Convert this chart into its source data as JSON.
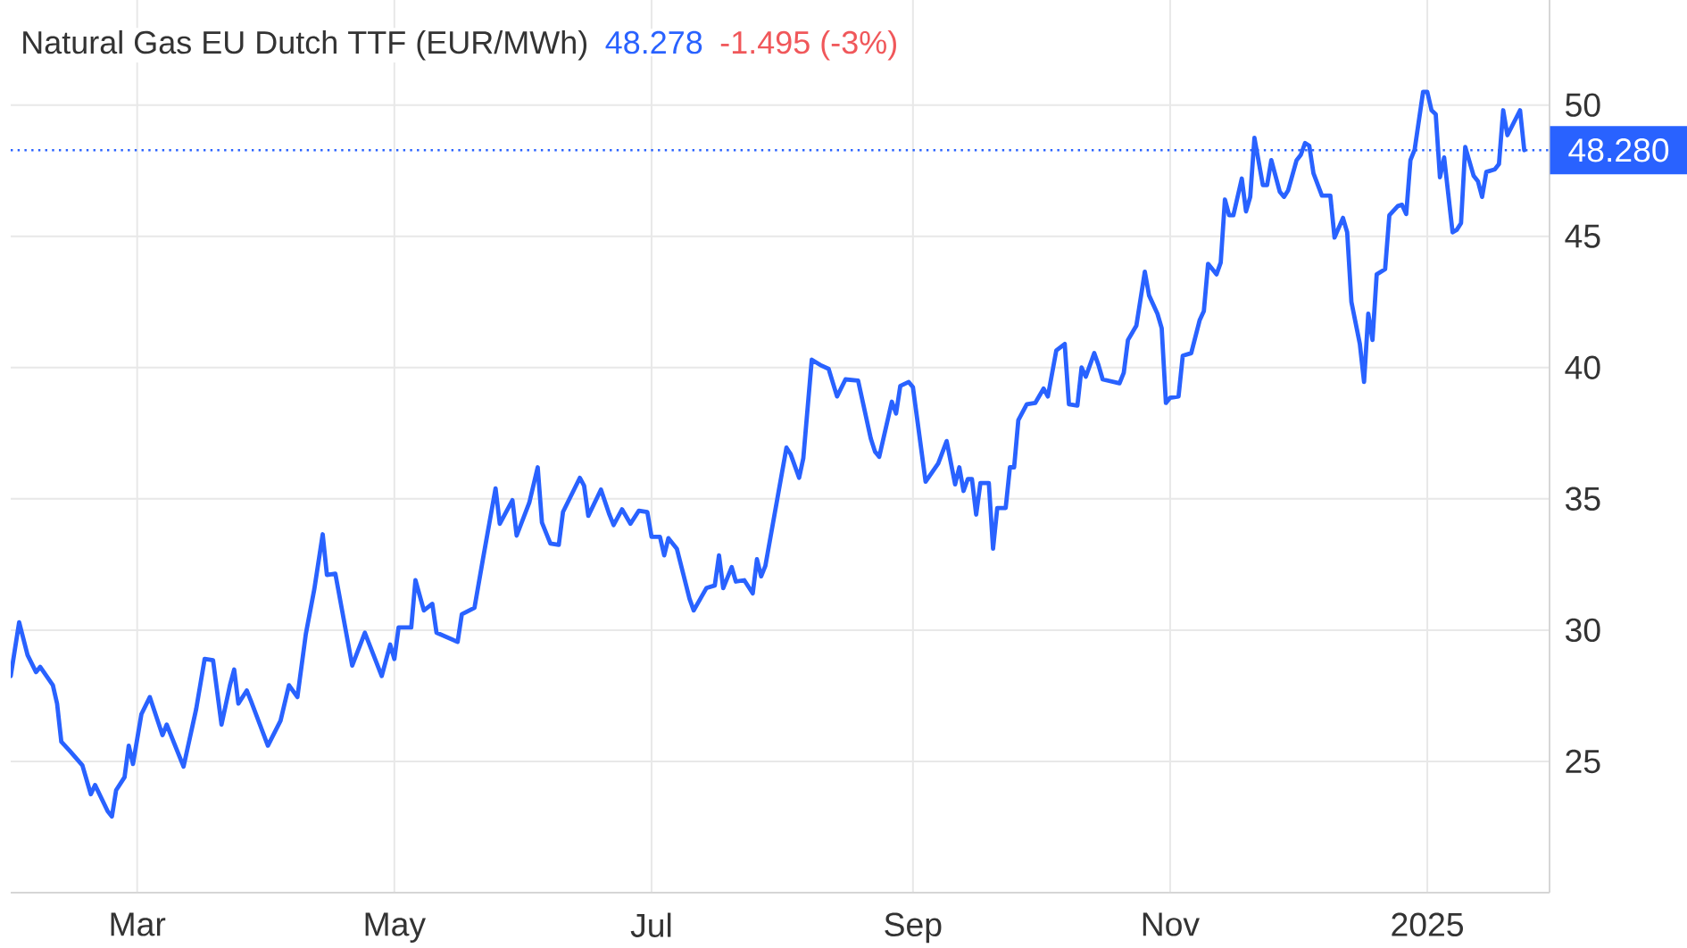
{
  "chart_data": {
    "type": "line",
    "title": "Natural Gas EU Dutch TTF (EUR/MWh)",
    "annotations": [
      "48.278",
      "-1.495 (-3%)"
    ],
    "color": "#2962ff",
    "x": [
      "2024-01-31",
      "2024-02-02",
      "2024-02-04",
      "2024-02-06",
      "2024-02-07",
      "2024-02-10",
      "2024-02-11",
      "2024-02-12",
      "2024-02-14",
      "2024-02-17",
      "2024-02-19",
      "2024-02-20",
      "2024-02-23",
      "2024-02-24",
      "2024-02-25",
      "2024-02-27",
      "2024-02-28",
      "2024-02-29",
      "2024-03-02",
      "2024-03-04",
      "2024-03-07",
      "2024-03-08",
      "2024-03-12",
      "2024-03-15",
      "2024-03-17",
      "2024-03-19",
      "2024-03-21",
      "2024-03-23",
      "2024-03-24",
      "2024-03-25",
      "2024-03-27",
      "2024-03-28",
      "2024-04-01",
      "2024-04-04",
      "2024-04-06",
      "2024-04-08",
      "2024-04-10",
      "2024-04-12",
      "2024-04-14",
      "2024-04-15",
      "2024-04-17",
      "2024-04-21",
      "2024-04-24",
      "2024-04-28",
      "2024-04-30",
      "2024-05-01",
      "2024-05-02",
      "2024-05-05",
      "2024-05-06",
      "2024-05-08",
      "2024-05-10",
      "2024-05-11",
      "2024-05-16",
      "2024-05-17",
      "2024-05-20",
      "2024-05-22",
      "2024-05-25",
      "2024-05-26",
      "2024-05-29",
      "2024-05-30",
      "2024-06-02",
      "2024-06-04",
      "2024-06-05",
      "2024-06-07",
      "2024-06-09",
      "2024-06-10",
      "2024-06-14",
      "2024-06-15",
      "2024-06-16",
      "2024-06-19",
      "2024-06-21",
      "2024-06-22",
      "2024-06-24",
      "2024-06-26",
      "2024-06-28",
      "2024-06-30",
      "2024-07-01",
      "2024-07-03",
      "2024-07-04",
      "2024-07-05",
      "2024-07-07",
      "2024-07-10",
      "2024-07-11",
      "2024-07-14",
      "2024-07-16",
      "2024-07-17",
      "2024-07-18",
      "2024-07-20",
      "2024-07-21",
      "2024-07-23",
      "2024-07-25",
      "2024-07-26",
      "2024-07-27",
      "2024-07-28",
      "2024-07-31",
      "2024-08-02",
      "2024-08-03",
      "2024-08-05",
      "2024-08-06",
      "2024-08-08",
      "2024-08-10",
      "2024-08-12",
      "2024-08-14",
      "2024-08-16",
      "2024-08-19",
      "2024-08-22",
      "2024-08-23",
      "2024-08-24",
      "2024-08-27",
      "2024-08-28",
      "2024-08-29",
      "2024-08-31",
      "2024-09-01",
      "2024-09-04",
      "2024-09-07",
      "2024-09-09",
      "2024-09-11",
      "2024-09-12",
      "2024-09-13",
      "2024-09-14",
      "2024-09-15",
      "2024-09-16",
      "2024-09-17",
      "2024-09-19",
      "2024-09-20",
      "2024-09-21",
      "2024-09-23",
      "2024-09-24",
      "2024-09-25",
      "2024-09-26",
      "2024-09-28",
      "2024-09-30",
      "2024-10-02",
      "2024-10-03",
      "2024-10-05",
      "2024-10-07",
      "2024-10-08",
      "2024-10-10",
      "2024-10-11",
      "2024-10-12",
      "2024-10-14",
      "2024-10-15",
      "2024-10-16",
      "2024-10-20",
      "2024-10-21",
      "2024-10-22",
      "2024-10-24",
      "2024-10-26",
      "2024-10-27",
      "2024-10-29",
      "2024-10-30",
      "2024-10-31",
      "2024-11-01",
      "2024-11-03",
      "2024-11-04",
      "2024-11-06",
      "2024-11-08",
      "2024-11-09",
      "2024-11-10",
      "2024-11-12",
      "2024-11-13",
      "2024-11-14",
      "2024-11-15",
      "2024-11-16",
      "2024-11-18",
      "2024-11-19",
      "2024-11-20",
      "2024-11-21",
      "2024-11-23",
      "2024-11-24",
      "2024-11-25",
      "2024-11-27",
      "2024-11-28",
      "2024-11-29",
      "2024-12-01",
      "2024-12-02",
      "2024-12-03",
      "2024-12-04",
      "2024-12-05",
      "2024-12-07",
      "2024-12-09",
      "2024-12-10",
      "2024-12-12",
      "2024-12-13",
      "2024-12-14",
      "2024-12-16",
      "2024-12-17",
      "2024-12-18",
      "2024-12-19",
      "2024-12-20",
      "2024-12-22",
      "2024-12-23",
      "2024-12-25",
      "2024-12-26",
      "2024-12-27",
      "2024-12-28",
      "2024-12-29",
      "2024-12-31",
      "2025-01-01",
      "2025-01-02",
      "2025-01-03",
      "2025-01-04",
      "2025-01-05",
      "2025-01-07",
      "2025-01-08",
      "2025-01-09",
      "2025-01-10",
      "2025-01-12",
      "2025-01-13",
      "2025-01-14",
      "2025-01-15",
      "2025-01-17",
      "2025-01-18",
      "2025-01-19",
      "2025-01-20",
      "2025-01-23",
      "2025-01-24"
    ],
    "values": [
      28.25,
      30.3,
      29.05,
      28.4,
      28.6,
      27.9,
      27.2,
      25.75,
      25.4,
      24.85,
      23.75,
      24.1,
      23.1,
      22.9,
      23.9,
      24.4,
      25.6,
      24.9,
      26.8,
      27.45,
      26.0,
      26.4,
      24.8,
      27.0,
      28.9,
      28.85,
      26.4,
      27.9,
      28.5,
      27.2,
      27.7,
      27.3,
      25.6,
      26.55,
      27.9,
      27.45,
      29.85,
      31.55,
      33.65,
      32.1,
      32.15,
      28.65,
      29.9,
      28.25,
      29.45,
      28.9,
      30.1,
      30.1,
      31.9,
      30.75,
      31.0,
      29.9,
      29.55,
      30.6,
      30.85,
      32.7,
      35.4,
      34.05,
      34.95,
      33.6,
      34.85,
      36.2,
      34.1,
      33.3,
      33.25,
      34.5,
      35.8,
      35.5,
      34.35,
      35.35,
      34.4,
      34.0,
      34.6,
      34.05,
      34.55,
      34.5,
      33.55,
      33.55,
      32.85,
      33.5,
      33.1,
      31.2,
      30.75,
      31.6,
      31.7,
      32.85,
      31.6,
      32.4,
      31.85,
      31.9,
      31.4,
      32.7,
      32.05,
      32.45,
      35.15,
      36.95,
      36.7,
      35.8,
      36.55,
      40.3,
      40.1,
      39.95,
      38.9,
      39.55,
      39.5,
      37.3,
      36.8,
      36.6,
      38.7,
      38.25,
      39.3,
      39.45,
      39.25,
      35.65,
      36.35,
      37.2,
      35.55,
      36.2,
      35.3,
      35.75,
      35.75,
      34.4,
      35.6,
      35.6,
      33.1,
      34.65,
      34.65,
      36.2,
      36.2,
      38.0,
      38.6,
      38.65,
      39.2,
      38.9,
      40.65,
      40.9,
      38.6,
      38.55,
      40.0,
      39.65,
      40.55,
      40.1,
      39.55,
      39.4,
      39.8,
      41.05,
      41.6,
      43.65,
      42.75,
      42.05,
      41.5,
      38.65,
      38.85,
      38.9,
      40.45,
      40.55,
      41.8,
      42.15,
      43.95,
      43.55,
      44.0,
      46.4,
      45.8,
      45.8,
      47.2,
      45.95,
      46.5,
      48.75,
      46.95,
      46.95,
      47.9,
      46.7,
      46.5,
      46.75,
      47.9,
      48.1,
      48.55,
      48.45,
      47.4,
      46.55,
      46.55,
      44.95,
      45.7,
      45.15,
      42.5,
      40.9,
      39.45,
      42.05,
      41.05,
      43.55,
      43.75,
      45.8,
      46.15,
      46.2,
      45.85,
      47.9,
      48.3,
      50.5,
      50.5,
      49.8,
      49.65,
      47.25,
      48.0,
      45.15,
      45.25,
      45.5,
      48.4,
      47.3,
      47.1,
      46.5,
      47.45,
      47.55,
      47.75,
      49.8,
      48.85,
      49.8,
      48.28
    ],
    "xlim": [
      "2024-01-31",
      "2025-01-30"
    ],
    "xticks": [
      {
        "value": "2024-03-01",
        "label": "Mar"
      },
      {
        "value": "2024-05-01",
        "label": "May"
      },
      {
        "value": "2024-07-01",
        "label": "Jul"
      },
      {
        "value": "2024-09-01",
        "label": "Sep"
      },
      {
        "value": "2024-11-01",
        "label": "Nov"
      },
      {
        "value": "2025-01-01",
        "label": "2025"
      }
    ],
    "ylim": [
      20,
      54
    ],
    "yticks": [
      25,
      30,
      35,
      40,
      45,
      50
    ],
    "grid": true,
    "ref_lines": [
      {
        "axis": "y",
        "value": 48.28,
        "label": "48.280",
        "color": "#2962ff",
        "line_style": "dotted"
      }
    ]
  }
}
